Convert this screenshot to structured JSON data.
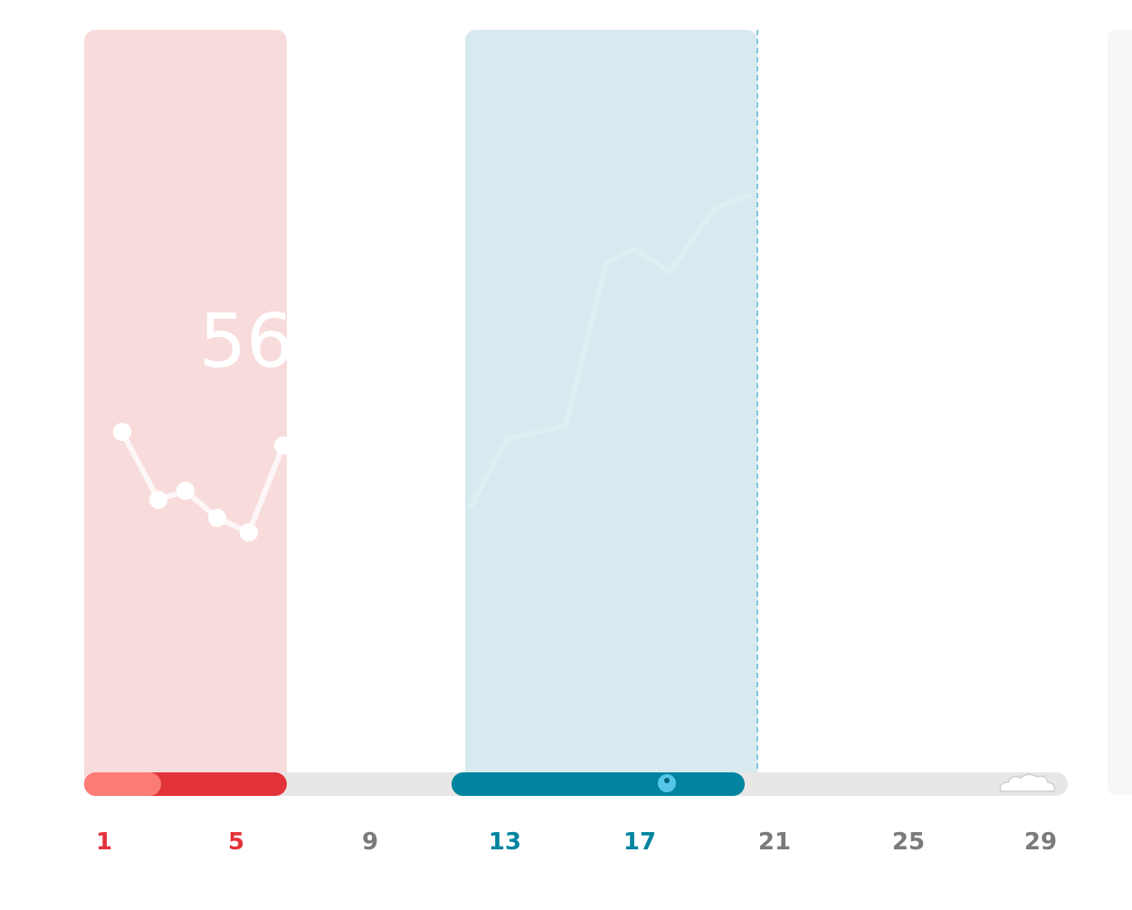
{
  "big_value": "56",
  "day_labels": [
    "1",
    "5",
    "9",
    "13",
    "17",
    "21",
    "25",
    "29"
  ]
}
